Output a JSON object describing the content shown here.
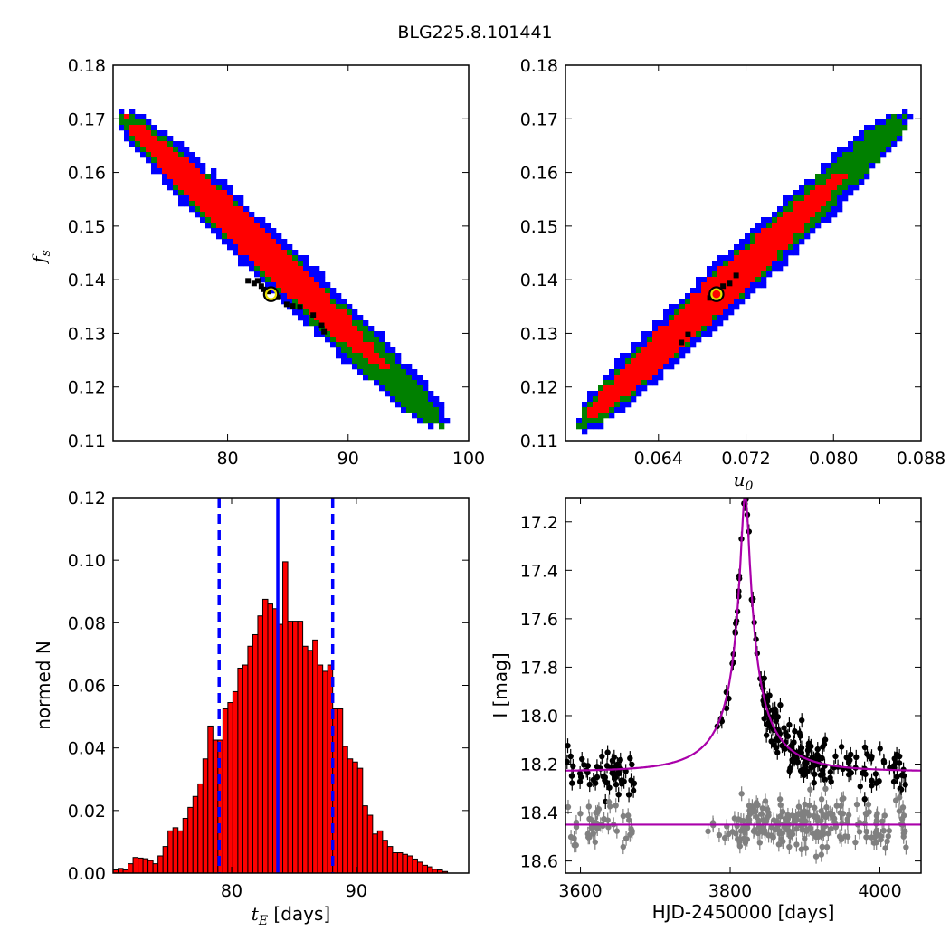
{
  "figure_title": "BLG225.8.101441",
  "chart_data": [
    {
      "id": "p1",
      "type": "heatmap",
      "xlabel": "",
      "ylabel": "f_s",
      "xlim": [
        70.5,
        100
      ],
      "ylim": [
        0.11,
        0.18
      ],
      "xticks": [
        80,
        90,
        100
      ],
      "yticks": [
        0.11,
        0.12,
        0.13,
        0.14,
        0.15,
        0.16,
        0.17,
        0.18
      ],
      "ytick_decimals": 2,
      "xtick_decimals": 0,
      "colors": {
        "outer": "#0000ff",
        "mid": "#008000",
        "inner": "#ff0000",
        "peak": "#000000"
      },
      "band": {
        "x0": 71.5,
        "y0": 0.1702,
        "x1": 97.5,
        "y1": 0.1137
      },
      "best_fit": [
        83.6,
        0.1373
      ],
      "peak_pixels": [
        [
          81.7,
          0.1398
        ],
        [
          82.2,
          0.1393
        ],
        [
          82.5,
          0.1398
        ],
        [
          82.8,
          0.1388
        ],
        [
          83.0,
          0.1382
        ],
        [
          83.4,
          0.1378
        ],
        [
          84.2,
          0.1367
        ],
        [
          84.9,
          0.1354
        ],
        [
          85.4,
          0.1351
        ],
        [
          86.0,
          0.1349
        ],
        [
          87.1,
          0.1334
        ],
        [
          87.8,
          0.1315
        ],
        [
          88.0,
          0.1303
        ]
      ]
    },
    {
      "id": "p2",
      "type": "heatmap",
      "xlabel": "u_0",
      "ylabel": "",
      "xlim": [
        0.0555,
        0.088
      ],
      "ylim": [
        0.11,
        0.18
      ],
      "xticks": [
        0.064,
        0.072,
        0.08,
        0.088
      ],
      "yticks": [
        0.11,
        0.12,
        0.13,
        0.14,
        0.15,
        0.16,
        0.17,
        0.18
      ],
      "ytick_decimals": 2,
      "xtick_decimals": 3,
      "colors": {
        "outer": "#0000ff",
        "mid": "#008000",
        "inner": "#ff0000",
        "peak": "#000000"
      },
      "band": {
        "x0": 0.0572,
        "y0": 0.1135,
        "x1": 0.0862,
        "y1": 0.17
      },
      "best_fit": [
        0.0693,
        0.1373
      ],
      "peak_pixels": [
        [
          0.0661,
          0.1283
        ],
        [
          0.0667,
          0.1298
        ],
        [
          0.0687,
          0.1366
        ],
        [
          0.0699,
          0.1388
        ],
        [
          0.0705,
          0.1393
        ],
        [
          0.0711,
          0.1408
        ]
      ]
    },
    {
      "id": "p3",
      "type": "bar",
      "xlabel": "t_E [days]",
      "ylabel": "normed N",
      "xlim": [
        70.5,
        99
      ],
      "ylim": [
        0,
        0.12
      ],
      "xticks": [
        80,
        90
      ],
      "yticks": [
        0.0,
        0.02,
        0.04,
        0.06,
        0.08,
        0.1,
        0.12
      ],
      "ytick_decimals": 2,
      "xtick_decimals": 0,
      "bar_color": "#ff0000",
      "bin_start": 70.5,
      "bin_width": 0.4,
      "values": [
        0.001,
        0.0015,
        0.001,
        0.003,
        0.005,
        0.0048,
        0.0046,
        0.004,
        0.003,
        0.0055,
        0.0085,
        0.0135,
        0.0145,
        0.0135,
        0.0175,
        0.021,
        0.0245,
        0.0285,
        0.0365,
        0.047,
        0.0425,
        0.0425,
        0.0525,
        0.0545,
        0.058,
        0.0655,
        0.0665,
        0.0725,
        0.0762,
        0.0822,
        0.0875,
        0.086,
        0.0845,
        0.0795,
        0.0995,
        0.0805,
        0.0805,
        0.0805,
        0.0725,
        0.0712,
        0.0745,
        0.0665,
        0.0645,
        0.0665,
        0.0525,
        0.0525,
        0.0405,
        0.0365,
        0.0355,
        0.0335,
        0.0215,
        0.0185,
        0.0125,
        0.0135,
        0.0105,
        0.0085,
        0.0065,
        0.0065,
        0.006,
        0.0055,
        0.0045,
        0.0035,
        0.0025,
        0.002,
        0.0012,
        0.001,
        0.0005
      ],
      "vlines": [
        {
          "x": 83.7,
          "style": "solid",
          "color": "#0000ff"
        },
        {
          "x": 79.0,
          "style": "dashed",
          "color": "#0000ff"
        },
        {
          "x": 88.1,
          "style": "dashed",
          "color": "#0000ff"
        }
      ]
    },
    {
      "id": "p4",
      "type": "scatter",
      "xlabel": "HJD-2450000 [days]",
      "ylabel": "I [mag]",
      "xlim": [
        3580,
        4055
      ],
      "ylim": [
        18.65,
        17.1
      ],
      "xticks": [
        3600,
        3800,
        4000
      ],
      "yticks": [
        17.2,
        17.4,
        17.6,
        17.8,
        18.0,
        18.2,
        18.4,
        18.6
      ],
      "ytick_decimals": 1,
      "xtick_decimals": 0,
      "model": {
        "t0": 3820,
        "tE": 83.7,
        "u0": 0.0693,
        "fs": 0.1373,
        "I_base": 18.23,
        "color": "#aa00aa"
      },
      "residual_baseline": 18.45,
      "data_color": "#000000",
      "residual_color": "#808080",
      "error_bar": 0.03
    }
  ]
}
